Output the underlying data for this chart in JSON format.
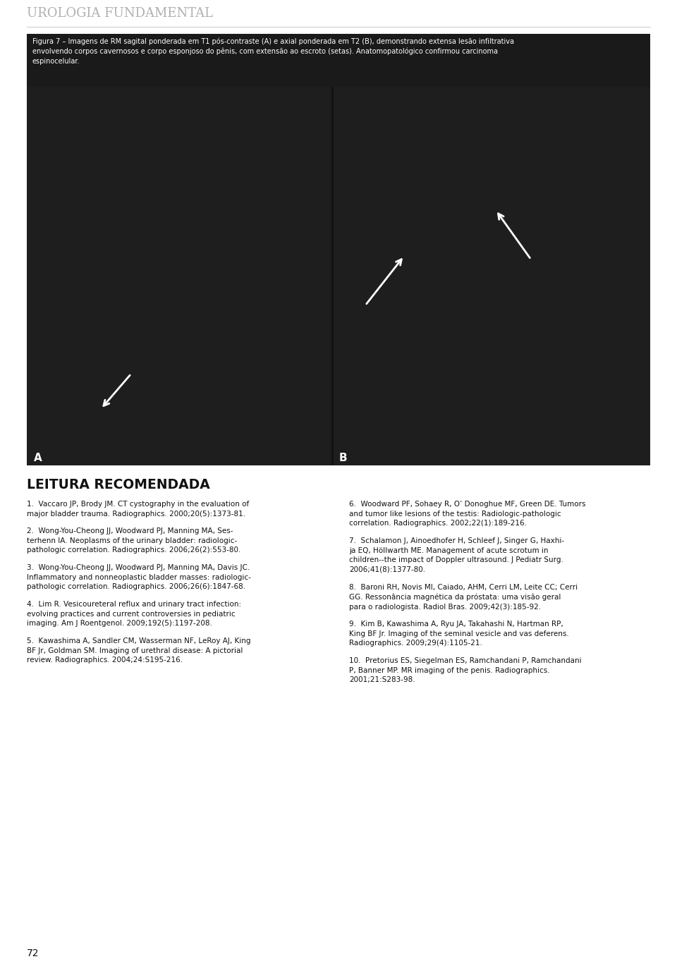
{
  "header_text": "UROLOGIA FUNDAMENTAL",
  "header_color": "#b0b0b0",
  "bg_color": "#ffffff",
  "figure_caption_line1": "Figura 7 – Imagens de RM sagital ponderada em T1 pós-contraste (A) e axial ponderada em T2 (B), demonstrando extensa lesão infiltrativa",
  "figure_caption_line2": "envolvendo corpos cavernosos e corpo esponjoso do pênis, com extensão ao escroto (setas). Anatomopatológico confirmou carcinoma",
  "figure_caption_line3": "espinocelular.",
  "section_title": "LEITURA RECOMENDADA",
  "ref1_num": "1.",
  "ref1_text": "Vaccaro JP, Brody JM. CT cystography in the evaluation of\nmajor bladder trauma. Radiographics. 2000;20(5):1373-81.",
  "ref2_num": "2.",
  "ref2_text": "Wong-You-Cheong JJ, Woodward PJ, Manning MA, Ses-\nterhenn IA. Neoplasms of the urinary bladder: radiologic-\npathologic correlation. Radiographics. 2006;26(2):553-80.",
  "ref3_num": "3.",
  "ref3_text": "Wong-You-Cheong JJ, Woodward PJ, Manning MA, Davis JC.\nInflammatory and nonneoplastic bladder masses: radiologic-\npathologic correlation. Radiographics. 2006;26(6):1847-68.",
  "ref4_num": "4.",
  "ref4_text": "Lim R. Vesicoureteral reflux and urinary tract infection:\nevolving practices and current controversies in pediatric\nimaging. Am J Roentgenol. 2009;192(5):1197-208.",
  "ref5_num": "5.",
  "ref5_text": "Kawashima A, Sandler CM, Wasserman NF, LeRoy AJ, King\nBF Jr, Goldman SM. Imaging of urethral disease: A pictorial\nreview. Radiographics. 2004;24:S195-216.",
  "ref6_num": "6.",
  "ref6_text": "Woodward PF, Sohaey R, O’ Donoghue MF, Green DE. Tumors\nand tumor like lesions of the testis: Radiologic-pathologic\ncorrelation. Radiographics. 2002;22(1):189-216.",
  "ref7_num": "7.",
  "ref7_text": "Schalamon J, Ainoedhofer H, Schleef J, Singer G, Haxhi-\nja EQ, Höllwarth ME. Management of acute scrotum in\nchildren--the impact of Doppler ultrasound. J Pediatr Surg.\n2006;41(8):1377-80.",
  "ref8_num": "8.",
  "ref8_text": "Baroni RH, Novis MI, Caiado, AHM, Cerri LM, Leite CC; Cerri\nGG. Ressonância magnética da próstata: uma visão geral\npara o radiologista. Radiol Bras. 2009;42(3):185-92.",
  "ref9_num": "9.",
  "ref9_text": "Kim B, Kawashima A, Ryu JA, Takahashi N, Hartman RP,\nKing BF Jr. Imaging of the seminal vesicle and vas deferens.\nRadiographics. 2009;29(4):1105-21.",
  "ref10_num": "10.",
  "ref10_text": "Pretorius ES, Siegelman ES, Ramchandani P, Ramchandani\nP, Banner MP. MR imaging of the penis. Radiographics.\n2001;21:S283-98.",
  "page_number": "72",
  "label_A": "A",
  "label_B": "B",
  "caption_bg": "#1a1a1a",
  "img_bg": "#1e1e1e",
  "img_gap": "#111111"
}
